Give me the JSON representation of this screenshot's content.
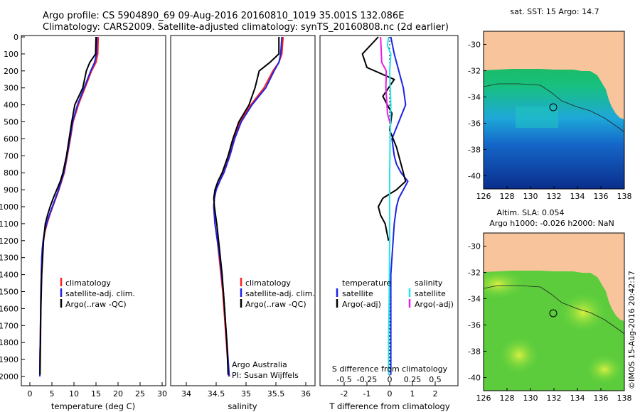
{
  "header": {
    "title_line1": "Argo profile: CS 5904890_69 09-Aug-2016 20160810_1019 35.001S 132.086E",
    "title_line2": "Climatology: CARS2009. Satellite-adjusted climatology: synTS_20160808.nc (2d earlier)"
  },
  "colors": {
    "climatology": "#ff2020",
    "satellite": "#1e22e6",
    "argo": "#000000",
    "sal_satellite": "#22e4ea",
    "sal_argo": "#e61ee6",
    "land": "#f8c49c"
  },
  "depth_ticks": [
    "0",
    "100",
    "200",
    "300",
    "400",
    "500",
    "600",
    "700",
    "800",
    "900",
    "1000",
    "1100",
    "1200",
    "1300",
    "1400",
    "1500",
    "1600",
    "1700",
    "1800",
    "1900",
    "2000"
  ],
  "panels": {
    "temperature": {
      "xlabel": "temperature (deg C)",
      "xticks": [
        "0",
        "5",
        "10",
        "15",
        "20",
        "25",
        "30"
      ],
      "legend": [
        "climatology",
        "satellite-adj. clim.",
        "Argo(..raw -QC)"
      ]
    },
    "salinity": {
      "xlabel": "salinity",
      "xticks": [
        "34",
        "34.5",
        "35",
        "35.5",
        "36"
      ],
      "legend": [
        "climatology",
        "satellite-adj. clim.",
        "Argo(..raw -QC)"
      ],
      "note1": "Argo Australia",
      "note2": "PI: Susan Wijffels"
    },
    "difference": {
      "legend_temp_title": "temperature",
      "legend_sal_title": "salinity",
      "legend_items": [
        "satellite",
        "Argo(-adj)",
        "satellite",
        "Argo(-adj)"
      ],
      "s_label": "S difference from climatology",
      "s_ticks": [
        "-0.5",
        "-0.25",
        "0",
        "0.25",
        "0.5"
      ],
      "t_label": "T difference from climatology",
      "t_ticks": [
        "-2",
        "-1",
        "0",
        "1",
        "2"
      ]
    }
  },
  "maps": {
    "top_title": "sat. SST: 15 Argo: 14.7",
    "bottom_title1": "Altim. SLA: 0.054",
    "bottom_title2": "Argo h1000: -0.026 h2000: NaN",
    "yticks": [
      "-30",
      "-32",
      "-34",
      "-36",
      "-38",
      "-40"
    ],
    "xticks": [
      "126",
      "128",
      "130",
      "132",
      "134",
      "136",
      "138"
    ],
    "credit": "©IMOS 15-Aug-2016 20:42:17"
  },
  "chart_data": [
    {
      "type": "line",
      "title": "temperature (deg C)",
      "xlabel": "temperature (deg C)",
      "ylabel": "",
      "xlim": [
        -1,
        31
      ],
      "ylim": [
        2050,
        0
      ],
      "series": [
        {
          "name": "climatology",
          "x": [
            15.5,
            15.4,
            15.0,
            14.0,
            12.5,
            11.0,
            9.8,
            9.2,
            8.5,
            7.8,
            7.2,
            6.6,
            5.9,
            5.2,
            4.5,
            3.9,
            3.4,
            3.1,
            2.9,
            2.7,
            2.6,
            2.5,
            2.45,
            2.4,
            2.35,
            2.3,
            2.28,
            2.26,
            2.25
          ],
          "y": [
            0,
            100,
            150,
            200,
            300,
            400,
            500,
            600,
            700,
            800,
            850,
            900,
            950,
            1000,
            1050,
            1100,
            1150,
            1200,
            1250,
            1300,
            1400,
            1500,
            1600,
            1700,
            1800,
            1850,
            1900,
            1950,
            2000
          ]
        },
        {
          "name": "satellite-adj. clim.",
          "x": [
            15.2,
            15.1,
            14.7,
            13.8,
            12.3,
            10.8,
            9.7,
            9.1,
            8.4,
            7.7,
            7.1,
            6.5,
            5.8,
            5.1,
            4.4,
            3.8,
            3.3,
            3.0,
            2.8,
            2.7,
            2.6,
            2.5,
            2.45,
            2.4,
            2.35,
            2.3,
            2.28,
            2.26,
            2.25
          ],
          "y": [
            0,
            100,
            150,
            200,
            300,
            400,
            500,
            600,
            700,
            800,
            850,
            900,
            950,
            1000,
            1050,
            1100,
            1150,
            1200,
            1250,
            1300,
            1400,
            1500,
            1600,
            1700,
            1800,
            1850,
            1900,
            1950,
            2000
          ]
        },
        {
          "name": "Argo(..raw -QC)",
          "x": [
            15.0,
            14.9,
            13.6,
            12.8,
            12.0,
            10.2,
            9.5,
            8.9,
            8.3,
            7.5,
            6.9,
            6.1,
            5.3,
            4.6,
            4.0,
            3.5,
            3.1,
            2.9,
            2.7,
            2.6,
            2.5,
            2.45,
            2.4,
            2.35,
            2.3
          ],
          "y": [
            0,
            100,
            150,
            200,
            300,
            400,
            500,
            600,
            700,
            800,
            850,
            900,
            950,
            1000,
            1050,
            1100,
            1200,
            1300,
            1400,
            1500,
            1600,
            1700,
            1800,
            1900,
            1990
          ]
        }
      ]
    },
    {
      "type": "line",
      "title": "salinity",
      "xlabel": "salinity",
      "ylabel": "",
      "xlim": [
        33.85,
        36.05
      ],
      "ylim": [
        2050,
        0
      ],
      "series": [
        {
          "name": "climatology",
          "x": [
            35.62,
            35.6,
            35.55,
            35.45,
            35.3,
            35.08,
            34.9,
            34.8,
            34.72,
            34.62,
            34.56,
            34.5,
            34.47,
            34.46,
            34.48,
            34.52,
            34.55,
            34.58,
            34.61,
            34.63,
            34.65,
            34.67,
            34.69,
            34.7,
            34.71
          ],
          "y": [
            0,
            100,
            150,
            200,
            300,
            400,
            500,
            600,
            700,
            800,
            850,
            900,
            950,
            1000,
            1100,
            1200,
            1300,
            1400,
            1500,
            1600,
            1700,
            1800,
            1900,
            1950,
            2000
          ]
        },
        {
          "name": "satellite-adj. clim.",
          "x": [
            35.6,
            35.58,
            35.55,
            35.47,
            35.33,
            35.1,
            34.92,
            34.81,
            34.73,
            34.63,
            34.56,
            34.5,
            34.47,
            34.46,
            34.48,
            34.52,
            34.56,
            34.59,
            34.62,
            34.64,
            34.66,
            34.68,
            34.7,
            34.71,
            34.72
          ],
          "y": [
            0,
            100,
            150,
            200,
            300,
            400,
            500,
            600,
            700,
            800,
            850,
            900,
            950,
            1000,
            1100,
            1200,
            1300,
            1400,
            1500,
            1600,
            1700,
            1800,
            1900,
            1950,
            2000
          ]
        },
        {
          "name": "Argo(..raw -QC)",
          "x": [
            35.55,
            35.55,
            35.4,
            35.22,
            35.15,
            35.05,
            34.88,
            34.78,
            34.7,
            34.6,
            34.53,
            34.48,
            34.46,
            34.47,
            34.51,
            34.54,
            34.57,
            34.6,
            34.62,
            34.64,
            34.66,
            34.68,
            34.69,
            34.7
          ],
          "y": [
            0,
            100,
            150,
            200,
            300,
            400,
            500,
            600,
            700,
            800,
            850,
            900,
            950,
            1000,
            1100,
            1200,
            1300,
            1400,
            1500,
            1600,
            1700,
            1800,
            1900,
            1990
          ]
        }
      ]
    },
    {
      "type": "line",
      "title": "T difference from climatology",
      "xlabel": "T difference from climatology",
      "ylabel": "",
      "xlim": [
        -3,
        3
      ],
      "ylim": [
        2050,
        0
      ],
      "series": [
        {
          "name": "temperature satellite",
          "x": [
            0.05,
            0.2,
            0.4,
            0.6,
            0.7,
            0.4,
            0.1,
            0.2,
            0.3,
            0.5,
            0.8,
            0.6,
            0.4,
            0.3,
            0.2,
            0.15,
            0.1,
            0.05,
            0.05,
            0.05,
            0.05,
            0.05,
            0.05
          ],
          "y": [
            0,
            100,
            200,
            300,
            400,
            500,
            600,
            700,
            750,
            800,
            850,
            900,
            950,
            1000,
            1100,
            1200,
            1300,
            1400,
            1500,
            1600,
            1700,
            1800,
            1990
          ]
        },
        {
          "name": "temperature Argo(-adj)",
          "x": [
            -0.5,
            -1.2,
            -1.0,
            0.2,
            -0.3,
            0.1,
            0.0,
            0.3,
            0.4,
            0.6,
            0.7,
            0.3,
            -0.3,
            -0.5,
            -0.4,
            -0.2,
            -0.05
          ],
          "y": [
            0,
            100,
            180,
            250,
            350,
            450,
            550,
            650,
            700,
            800,
            850,
            900,
            950,
            1000,
            1050,
            1100,
            1200
          ]
        },
        {
          "name": "salinity satellite",
          "x": [
            -0.05,
            -0.1,
            0.05,
            0.0,
            0.05,
            0.02,
            0.0,
            0.0,
            0.0,
            -0.02,
            -0.05,
            -0.05
          ],
          "y": [
            0,
            50,
            100,
            200,
            400,
            600,
            800,
            1000,
            1200,
            1500,
            1800,
            1990
          ]
        },
        {
          "name": "salinity Argo(-adj)",
          "x": [
            -0.4,
            -0.35,
            -0.15,
            -0.17,
            -0.12,
            -0.1,
            0.0
          ],
          "y": [
            0,
            150,
            200,
            300,
            400,
            450,
            500
          ]
        }
      ]
    }
  ]
}
